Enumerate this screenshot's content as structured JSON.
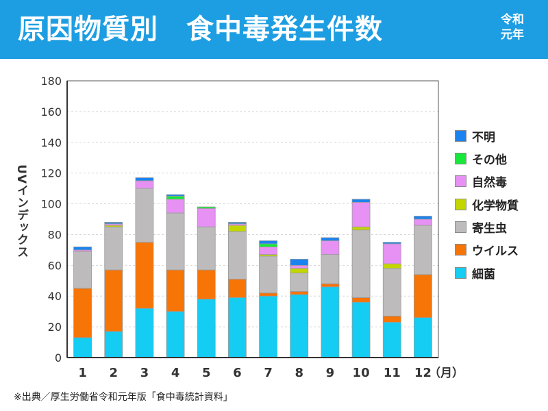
{
  "header": {
    "title": "原因物質別　食中毒発生件数",
    "era_line1": "令和",
    "era_line2": "元年"
  },
  "source": "※出典／厚生労働省令和元年版「食中毒統計資料」",
  "colors": {
    "header_bg": "#1e9ee2",
    "細菌": "#15ccf2",
    "ウイルス": "#f77406",
    "寄生虫": "#bdbbbb",
    "化学物質": "#c4d600",
    "自然毒": "#e691f3",
    "その他": "#18e83a",
    "不明": "#1a83f0"
  },
  "chart_data": {
    "type": "bar",
    "stacked": true,
    "ylabel": "UVインデックス",
    "x_unit": "（月）",
    "ylim": [
      0,
      180
    ],
    "yticks": [
      0,
      20,
      40,
      60,
      80,
      100,
      120,
      140,
      160,
      180
    ],
    "grid": true,
    "legend_position": "right",
    "categories": [
      "1",
      "2",
      "3",
      "4",
      "5",
      "6",
      "7",
      "8",
      "9",
      "10",
      "11",
      "12"
    ],
    "series": [
      {
        "name": "細菌",
        "values": [
          13,
          17,
          32,
          30,
          38,
          39,
          40,
          41,
          46,
          36,
          23,
          26
        ]
      },
      {
        "name": "ウイルス",
        "values": [
          32,
          40,
          43,
          27,
          19,
          12,
          2,
          2,
          2,
          3,
          4,
          28
        ]
      },
      {
        "name": "寄生虫",
        "values": [
          24,
          28,
          35,
          37,
          28,
          31,
          24,
          12,
          19,
          44,
          31,
          32
        ]
      },
      {
        "name": "化学物質",
        "values": [
          0,
          1,
          0,
          0,
          0,
          4,
          1,
          3,
          0,
          2,
          3,
          0
        ]
      },
      {
        "name": "自然毒",
        "values": [
          1,
          1,
          5,
          9,
          12,
          1,
          5,
          2,
          9,
          16,
          13,
          4
        ]
      },
      {
        "name": "その他",
        "values": [
          0,
          0,
          0,
          2,
          1,
          0,
          2,
          0,
          0,
          0,
          0,
          0
        ]
      },
      {
        "name": "不明",
        "values": [
          2,
          1,
          2,
          1,
          0,
          1,
          2,
          4,
          2,
          2,
          1,
          2
        ]
      }
    ],
    "legend_order": [
      "不明",
      "その他",
      "自然毒",
      "化学物質",
      "寄生虫",
      "ウイルス",
      "細菌"
    ]
  }
}
